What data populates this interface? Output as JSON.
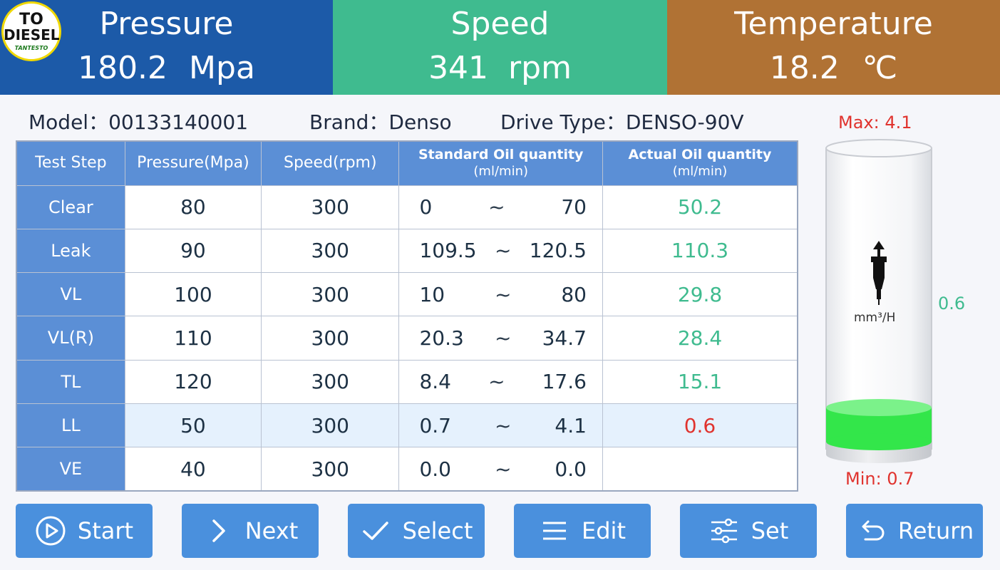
{
  "logo": {
    "line1": "TO",
    "line2": "DIESEL",
    "line3": "TANTESTO"
  },
  "header": {
    "pressure": {
      "title": "Pressure",
      "value": "180.2",
      "unit": "Mpa"
    },
    "speed": {
      "title": "Speed",
      "value": "341",
      "unit": "rpm"
    },
    "temperature": {
      "title": "Temperature",
      "value": "18.2",
      "unit": "℃"
    }
  },
  "info": {
    "model": "Model：00133140001",
    "brand": "Brand：Denso",
    "drive_type": "Drive Type：DENSO-90V"
  },
  "table": {
    "headers": {
      "step": "Test Step",
      "pressure": "Pressure(Mpa)",
      "speed": "Speed(rpm)",
      "standard": "Standard Oil quantity",
      "standard_unit": "(ml/min)",
      "actual": "Actual Oil quantity",
      "actual_unit": "(ml/min)"
    },
    "tilde": "~",
    "rows": [
      {
        "step": "Clear",
        "pressure": "80",
        "speed": "300",
        "min": "0",
        "max": "70",
        "actual": "50.2"
      },
      {
        "step": "Leak",
        "pressure": "90",
        "speed": "300",
        "min": "109.5",
        "max": "120.5",
        "actual": "110.3"
      },
      {
        "step": "VL",
        "pressure": "100",
        "speed": "300",
        "min": "10",
        "max": "80",
        "actual": "29.8"
      },
      {
        "step": "VL(R)",
        "pressure": "110",
        "speed": "300",
        "min": "20.3",
        "max": "34.7",
        "actual": "28.4"
      },
      {
        "step": "TL",
        "pressure": "120",
        "speed": "300",
        "min": "8.4",
        "max": "17.6",
        "actual": "15.1"
      },
      {
        "step": "LL",
        "pressure": "50",
        "speed": "300",
        "min": "0.7",
        "max": "4.1",
        "actual": "0.6"
      },
      {
        "step": "VE",
        "pressure": "40",
        "speed": "300",
        "min": "0.0",
        "max": "0.0",
        "actual": ""
      }
    ]
  },
  "beaker": {
    "max_label": "Max: 4.1",
    "min_label": "Min: 0.7",
    "current": "0.6",
    "unit": "mm³/H",
    "fill_fraction": 0.12,
    "fill_color": "#33e64a"
  },
  "buttons": {
    "start": "Start",
    "next": "Next",
    "select": "Select",
    "edit": "Edit",
    "set": "Set",
    "return": "Return"
  },
  "colors": {
    "pressure_panel": "#1c5aa8",
    "speed_panel": "#3fbb8f",
    "temperature_panel": "#b07234",
    "table_header": "#5b8fd6",
    "button": "#4a90dd",
    "ok_value": "#3fbb8f",
    "bad_value": "#e0332e"
  }
}
